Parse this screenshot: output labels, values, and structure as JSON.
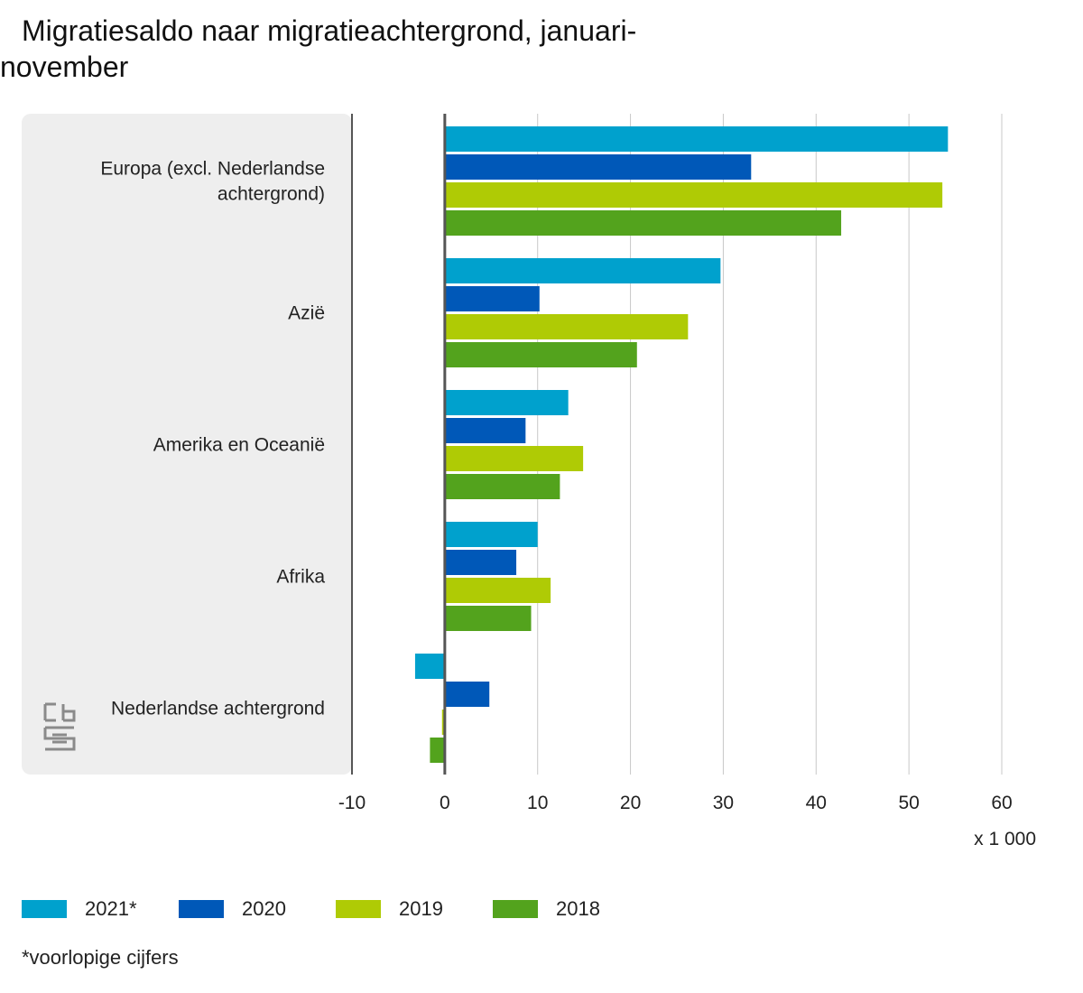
{
  "title": "Migratiesaldo naar migratieachtergrond, januari-november",
  "footnote": "*voorlopige cijfers",
  "colors": {
    "panel": "#eeeeee",
    "grid": "#c8c8c8",
    "axis": "#555555",
    "logo": "#8a8a8a"
  },
  "chart_data": {
    "type": "bar",
    "orientation": "horizontal",
    "categories": [
      "Europa (excl. Nederlandse achtergrond)",
      "Azië",
      "Amerika en Oceanië",
      "Afrika",
      "Nederlandse achtergrond"
    ],
    "category_lines": [
      [
        "Europa (excl. Nederlandse",
        "achtergrond)"
      ],
      [
        "Azië"
      ],
      [
        "Amerika en Oceanië"
      ],
      [
        "Afrika"
      ],
      [
        "Nederlandse achtergrond"
      ]
    ],
    "series": [
      {
        "name": "2021*",
        "color": "#00a1cd",
        "values": [
          54.2,
          29.7,
          13.3,
          10.0,
          -3.2
        ]
      },
      {
        "name": "2020",
        "color": "#0058b8",
        "values": [
          33.0,
          10.2,
          8.7,
          7.7,
          4.8
        ]
      },
      {
        "name": "2019",
        "color": "#afcb05",
        "values": [
          53.6,
          26.2,
          14.9,
          11.4,
          -0.3
        ]
      },
      {
        "name": "2018",
        "color": "#53a31d",
        "values": [
          42.7,
          20.7,
          12.4,
          9.3,
          -1.6
        ]
      }
    ],
    "xlim": [
      -10,
      60
    ],
    "xticks": [
      "-10",
      "0",
      "10",
      "20",
      "30",
      "40",
      "50",
      "60"
    ],
    "xtick_values": [
      -10,
      0,
      10,
      20,
      30,
      40,
      50,
      60
    ],
    "unit_label": "x 1 000",
    "grid": true,
    "legend_position": "bottom"
  }
}
